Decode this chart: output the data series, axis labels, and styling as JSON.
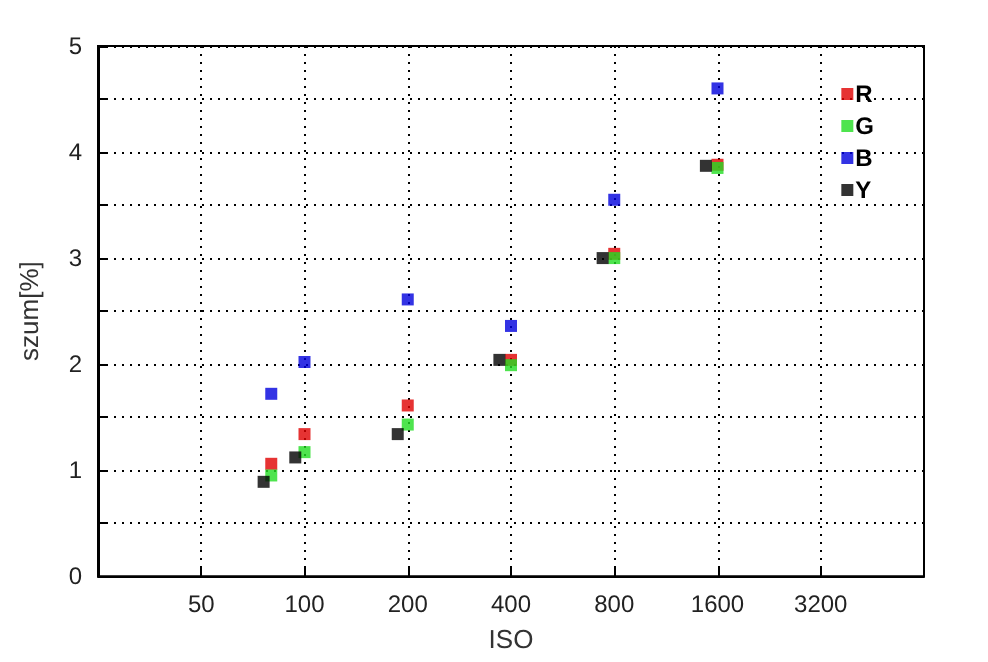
{
  "chart_data": {
    "type": "scatter",
    "xlabel": "ISO",
    "ylabel": "szum[%]",
    "log": "x",
    "xlim": [
      25,
      6400
    ],
    "xticks": [
      50,
      100,
      200,
      400,
      800,
      1600,
      3200
    ],
    "ylim": [
      0,
      5
    ],
    "yticks": [
      0,
      {
        "value": 0.5,
        "label": null
      },
      1,
      {
        "value": 1.5,
        "label": null
      },
      2,
      {
        "value": 2.5,
        "label": null
      },
      3,
      {
        "value": 3.5,
        "label": null
      },
      4,
      {
        "value": 4.5,
        "label": null
      },
      5
    ],
    "grid": true,
    "legend": "top right",
    "marker": "square",
    "series": [
      {
        "name": "R",
        "color": "#e00000",
        "x": [
          80,
          100,
          200,
          400,
          800,
          1600
        ],
        "values": [
          1.06,
          1.34,
          1.61,
          2.04,
          3.04,
          3.88
        ]
      },
      {
        "name": "G",
        "color": "#22dd22",
        "x": [
          80,
          100,
          200,
          400,
          800,
          1600
        ],
        "values": [
          0.95,
          1.17,
          1.43,
          1.99,
          3.0,
          3.85
        ]
      },
      {
        "name": "B",
        "color": "#0000dd",
        "x": [
          80,
          100,
          200,
          400,
          800,
          1600
        ],
        "values": [
          1.72,
          2.02,
          2.61,
          2.36,
          3.55,
          4.6
        ]
      },
      {
        "name": "Y",
        "color": "#000000",
        "x": [
          76,
          94,
          187,
          370,
          740,
          1480
        ],
        "values": [
          0.89,
          1.12,
          1.34,
          2.04,
          3.0,
          3.87
        ]
      }
    ]
  }
}
